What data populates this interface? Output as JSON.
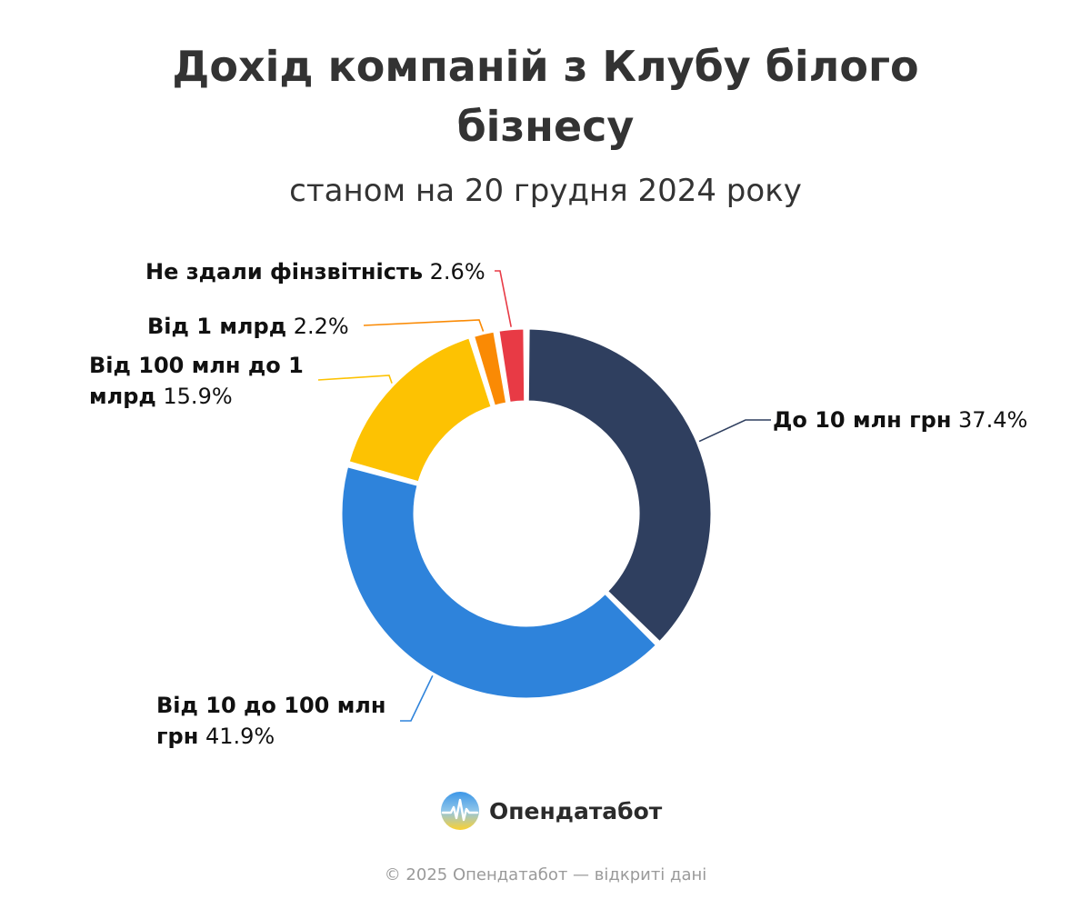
{
  "chart_data": {
    "type": "pie",
    "donut": true,
    "title": "Дохід компаній з Клубу білого бізнесу",
    "subtitle": "станом на 20 грудня 2024 року",
    "slices": [
      {
        "name": "До 10 млн грн",
        "value": 37.4,
        "label": "37.4%",
        "color": "#2f3f5f"
      },
      {
        "name": "Від 10 до 100 млн грн",
        "value": 41.9,
        "label": "41.9%",
        "color": "#2e83db"
      },
      {
        "name": "Від 100 млн до 1 млрд",
        "value": 15.9,
        "label": "15.9%",
        "color": "#fdc202"
      },
      {
        "name": "Від 1 млрд",
        "value": 2.2,
        "label": "2.2%",
        "color": "#fa8a04"
      },
      {
        "name": "Не здали фінзвітність",
        "value": 2.6,
        "label": "2.6%",
        "color": "#e83a45"
      }
    ]
  },
  "brand": {
    "name": "Опендатабот",
    "logo_icon": "opendatabot-logo-icon"
  },
  "footer": {
    "text": "© 2025 Опендатабот — відкриті дані"
  }
}
